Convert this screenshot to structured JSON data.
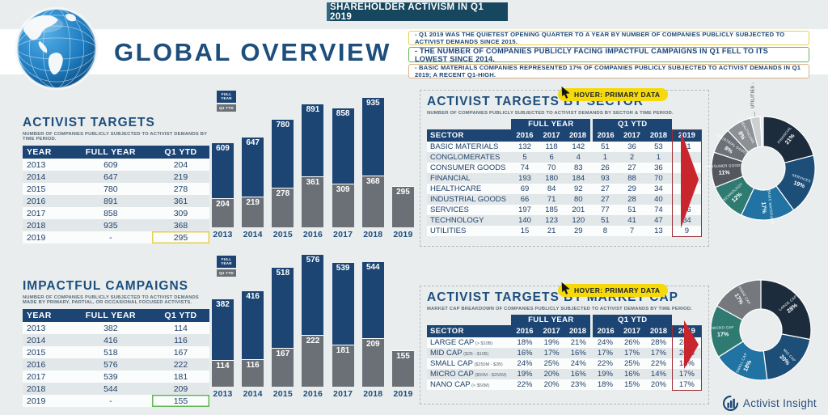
{
  "banner": {
    "title": "SHAREHOLDER ACTIVISM IN Q1 2019"
  },
  "page_title": "GLOBAL OVERVIEW",
  "hover_label": "HOVER: PRIMARY DATA",
  "legend": {
    "full_year": "FULL YEAR",
    "q1_ytd": "Q1 YTD"
  },
  "highlights": [
    {
      "text": "- Q1 2019 WAS THE QUIETEST OPENING QUARTER TO A YEAR BY NUMBER OF COMPANIES PUBLICLY SUBJECTED TO ACTIVIST DEMANDS SINCE 2015.",
      "border": "#e7cf4f"
    },
    {
      "text": "- THE NUMBER OF COMPANIES PUBLICLY FACING IMPACTFUL CAMPAIGNS IN Q1 FELL TO ITS LOWEST SINCE 2014.",
      "border": "#63b857"
    },
    {
      "text": "- BASIC MATERIALS COMPANIES REPRESENTED 17% OF COMPANIES PUBLICLY SUBJECTED TO ACTIVIST DEMANDS IN Q1 2019; A RECENT Q1-HIGH.",
      "border": "#d9b384"
    }
  ],
  "activist_targets_table": {
    "title": "ACTIVIST TARGETS",
    "subtitle": "NUMBER OF COMPANIES PUBLICLY SUBJECTED TO ACTIVIST DEMANDS BY TIME PERIOD.",
    "columns": [
      "YEAR",
      "FULL YEAR",
      "Q1 YTD"
    ],
    "rows": [
      [
        "2013",
        "609",
        "204"
      ],
      [
        "2014",
        "647",
        "219"
      ],
      [
        "2015",
        "780",
        "278"
      ],
      [
        "2016",
        "891",
        "361"
      ],
      [
        "2017",
        "858",
        "309"
      ],
      [
        "2018",
        "935",
        "368"
      ],
      [
        "2019",
        "-",
        "295"
      ]
    ],
    "highlight_color": "#e7cf4f"
  },
  "impactful_campaigns_table": {
    "title": "IMPACTFUL CAMPAIGNS",
    "subtitle": "NUMBER OF COMPANIES PUBLICLY SUBJECTED TO ACTIVIST DEMANDS MADE BY PRIMARY, PARTIAL, OR OCCASIONAL FOCUSED ACTIVISTS.",
    "columns": [
      "YEAR",
      "FULL YEAR",
      "Q1 YTD"
    ],
    "rows": [
      [
        "2013",
        "382",
        "114"
      ],
      [
        "2014",
        "416",
        "116"
      ],
      [
        "2015",
        "518",
        "167"
      ],
      [
        "2016",
        "576",
        "222"
      ],
      [
        "2017",
        "539",
        "181"
      ],
      [
        "2018",
        "544",
        "209"
      ],
      [
        "2019",
        "-",
        "155"
      ]
    ],
    "highlight_color": "#63b857"
  },
  "sector_panel": {
    "title": "ACTIVIST TARGETS BY SECTOR",
    "subtitle": "NUMBER OF COMPANIES PUBLICLY SUBJECTED TO ACTIVIST DEMANDS BY SECTOR & TIME PERIOD.",
    "label_col": "SECTOR",
    "group_headers": [
      "FULL YEAR",
      "Q1 YTD"
    ],
    "full_year_cols": [
      "2016",
      "2017",
      "2018"
    ],
    "q1_cols": [
      "2016",
      "2017",
      "2018"
    ],
    "highlight_col": "2019",
    "rows": [
      {
        "label": "BASIC MATERIALS",
        "full_year": [
          "132",
          "118",
          "142"
        ],
        "q1": [
          "51",
          "36",
          "53"
        ],
        "y2019": "51"
      },
      {
        "label": "CONGLOMERATES",
        "full_year": [
          "5",
          "6",
          "4"
        ],
        "q1": [
          "1",
          "2",
          "1"
        ],
        "y2019": "1"
      },
      {
        "label": "CONSUMER GOODS",
        "full_year": [
          "74",
          "70",
          "83"
        ],
        "q1": [
          "26",
          "27",
          "36"
        ],
        "y2019": "33"
      },
      {
        "label": "FINANCIAL",
        "full_year": [
          "193",
          "180",
          "184"
        ],
        "q1": [
          "93",
          "88",
          "70"
        ],
        "y2019": "63"
      },
      {
        "label": "HEALTHCARE",
        "full_year": [
          "69",
          "84",
          "92"
        ],
        "q1": [
          "27",
          "29",
          "34"
        ],
        "y2019": "25"
      },
      {
        "label": "INDUSTRIAL GOODS",
        "full_year": [
          "66",
          "71",
          "80"
        ],
        "q1": [
          "27",
          "28",
          "40"
        ],
        "y2019": "23"
      },
      {
        "label": "SERVICES",
        "full_year": [
          "197",
          "185",
          "201"
        ],
        "q1": [
          "77",
          "51",
          "74"
        ],
        "y2019": "56"
      },
      {
        "label": "TECHNOLOGY",
        "full_year": [
          "140",
          "123",
          "120"
        ],
        "q1": [
          "51",
          "41",
          "47"
        ],
        "y2019": "34"
      },
      {
        "label": "UTILITIES",
        "full_year": [
          "15",
          "21",
          "29"
        ],
        "q1": [
          "8",
          "7",
          "13"
        ],
        "y2019": "9"
      }
    ]
  },
  "marketcap_panel": {
    "title": "ACTIVIST TARGETS BY MARKET CAP",
    "subtitle": "MARKET CAP BREAKDOWN OF COMPANIES PUBLICLY SUBJECTED TO ACTIVIST DEMANDS BY TIME PERIOD.",
    "label_col": "SECTOR",
    "group_headers": [
      "FULL YEAR",
      "Q1 YTD"
    ],
    "full_year_cols": [
      "2016",
      "2017",
      "2018"
    ],
    "q1_cols": [
      "2016",
      "2017",
      "2018"
    ],
    "highlight_col": "2019",
    "rows": [
      {
        "label": "LARGE CAP",
        "sub": "(> $10B)",
        "full_year": [
          "18%",
          "19%",
          "21%"
        ],
        "q1": [
          "24%",
          "26%",
          "28%"
        ],
        "y2019": "28%"
      },
      {
        "label": "MID CAP",
        "sub": "($2B - $10B)",
        "full_year": [
          "16%",
          "17%",
          "16%"
        ],
        "q1": [
          "17%",
          "17%",
          "17%"
        ],
        "y2019": "20%"
      },
      {
        "label": "SMALL CAP",
        "sub": "($250M - $2B)",
        "full_year": [
          "24%",
          "25%",
          "24%"
        ],
        "q1": [
          "22%",
          "25%",
          "22%"
        ],
        "y2019": "18%"
      },
      {
        "label": "MICRO CAP",
        "sub": "($50M - $250M)",
        "full_year": [
          "19%",
          "20%",
          "16%"
        ],
        "q1": [
          "19%",
          "16%",
          "14%"
        ],
        "y2019": "17%"
      },
      {
        "label": "NANO CAP",
        "sub": "(< $50M)",
        "full_year": [
          "22%",
          "20%",
          "23%"
        ],
        "q1": [
          "18%",
          "15%",
          "20%"
        ],
        "y2019": "17%"
      }
    ]
  },
  "chart_data": [
    {
      "type": "bar",
      "title": "ACTIVIST TARGETS",
      "categories": [
        "2013",
        "2014",
        "2015",
        "2016",
        "2017",
        "2018",
        "2019"
      ],
      "series": [
        {
          "name": "FULL YEAR",
          "color": "#1c4574",
          "values": [
            609,
            647,
            780,
            891,
            858,
            935,
            null
          ]
        },
        {
          "name": "Q1 YTD",
          "color": "#6b7076",
          "values": [
            204,
            219,
            278,
            361,
            309,
            368,
            295
          ]
        }
      ],
      "ylim": [
        0,
        935
      ],
      "grid": false,
      "legend_position": "top-left"
    },
    {
      "type": "bar",
      "title": "IMPACTFUL CAMPAIGNS",
      "categories": [
        "2013",
        "2014",
        "2015",
        "2016",
        "2017",
        "2018",
        "2019"
      ],
      "series": [
        {
          "name": "FULL YEAR",
          "color": "#1c4574",
          "values": [
            382,
            416,
            518,
            576,
            539,
            544,
            null
          ]
        },
        {
          "name": "Q1 YTD",
          "color": "#6b7076",
          "values": [
            114,
            116,
            167,
            222,
            181,
            209,
            155
          ]
        }
      ],
      "ylim": [
        0,
        576
      ],
      "grid": false,
      "legend_position": "top-left"
    },
    {
      "type": "pie",
      "title": "ACTIVIST TARGETS BY SECTOR",
      "labels": [
        "FINANCIAL",
        "SERVICES",
        "BASIC MATERIALS",
        "TECHNOLOGY",
        "CONSUMER GOODS",
        "INDUSTRIAL GOODS",
        "HEALTHCARE",
        "UTILITIES"
      ],
      "values": [
        21,
        19,
        17,
        12,
        11,
        8,
        8,
        3
      ],
      "unit": "%",
      "colors": [
        "#1d2c3d",
        "#1d4e78",
        "#2173a3",
        "#2f7b72",
        "#54585e",
        "#6c7177",
        "#8d9196",
        "#ccd0d2"
      ],
      "callout": [
        "UTILITIES"
      ]
    },
    {
      "type": "pie",
      "title": "ACTIVIST TARGETS BY MARKET CAP",
      "labels": [
        "LARGE CAP",
        "MID CAP",
        "SMALL CAP",
        "MICRO CAP",
        "NANO CAP"
      ],
      "values": [
        28,
        20,
        18,
        17,
        17
      ],
      "unit": "%",
      "colors": [
        "#1d2c3d",
        "#1d4e78",
        "#2173a3",
        "#2f7b72",
        "#75797e"
      ],
      "callout": []
    }
  ],
  "footer": {
    "brand": "Activist Insight"
  },
  "colors": {
    "page_bg": "#e9edee",
    "navy": "#1c4574",
    "banner": "#16475f",
    "bar_blue": "#1c4574",
    "bar_gray": "#6b7076",
    "hover_yellow": "#f6d90a",
    "red_accent": "#c9252c",
    "highlight_yellow": "#e7cf4f",
    "highlight_green": "#63b857"
  }
}
